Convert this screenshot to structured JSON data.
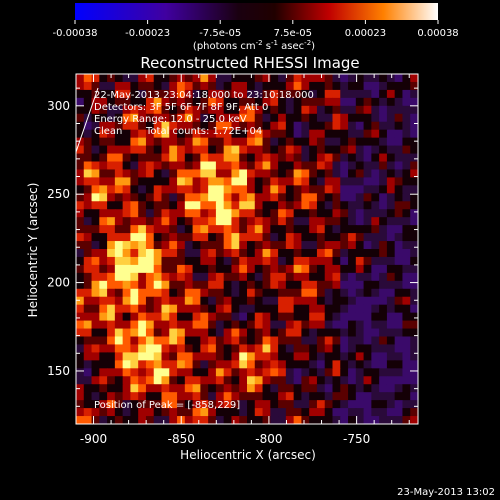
{
  "chart_data": {
    "type": "heatmap",
    "title": "Reconstructed RHESSI Image",
    "xlabel": "Heliocentric X (arcsec)",
    "ylabel": "Heliocentric Y (arcsec)",
    "xlim": [
      -910,
      -715
    ],
    "ylim": [
      120,
      318
    ],
    "xticks": [
      -900,
      -850,
      -800,
      -750
    ],
    "yticks": [
      150,
      200,
      250,
      300
    ],
    "colorbar": {
      "range": [
        -0.00038,
        0.00038
      ],
      "ticks": [
        "-0.00038",
        "-0.00023",
        "-7.5e-05",
        "7.5e-05",
        "0.00023",
        "0.00038"
      ],
      "unit_label": "(photons cm",
      "unit_exp1": "-2",
      "unit_mid": " s",
      "unit_exp2": "-1",
      "unit_mid2": " asec",
      "unit_exp3": "-2",
      "unit_end": ")"
    },
    "annotations": {
      "time": "22-May-2013 23:04:18.000 to 23:10:18.000",
      "detectors": "Detectors: 3F 5F 6F 7F 8F 9F, Att 0",
      "energy": "Energy Range: 12.0 - 25.0 keV",
      "method": "Clean",
      "counts": "Total counts: 1.72E+04",
      "peak": "Position of Peak = [-858,229]"
    },
    "peak": {
      "x": -858,
      "y": 229
    },
    "footer_date": "23-May-2013 13:02"
  }
}
